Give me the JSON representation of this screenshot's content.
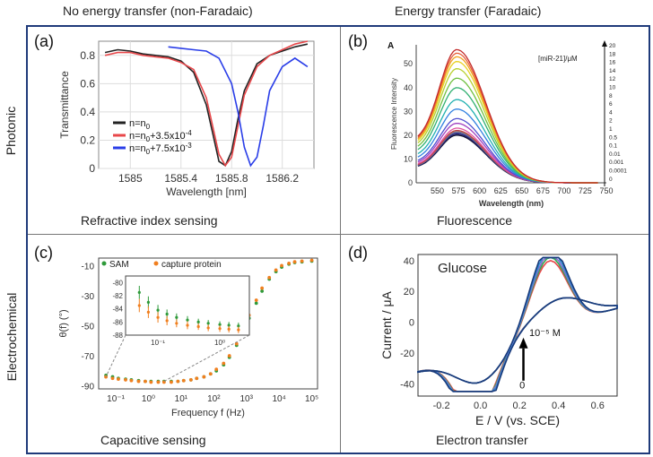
{
  "header": {
    "col_left": "No energy transfer (non-Faradaic)",
    "col_right": "Energy transfer (Faradaic)",
    "row_top": "Photonic",
    "row_bottom": "Electrochemical"
  },
  "panels": {
    "a": {
      "label": "(a)",
      "caption": "Refractive index sensing"
    },
    "b": {
      "label": "(b)",
      "caption": "Fluorescence"
    },
    "c": {
      "label": "(c)",
      "caption": "Capacitive sensing"
    },
    "d": {
      "label": "(d)",
      "caption": "Electron transfer"
    }
  },
  "colors": {
    "black": "#222222",
    "red": "#e8474a",
    "blue": "#2a3ee8",
    "green": "#2e9a3a",
    "orange": "#f07f1f",
    "border": "#1f3a7a"
  },
  "chart_data": [
    {
      "id": "a",
      "type": "line",
      "xlabel": "Wavelength [nm]",
      "ylabel": "Transmittance",
      "xlim": [
        1584.75,
        1586.45
      ],
      "ylim": [
        0,
        0.9
      ],
      "xticks": [
        1585,
        1585.4,
        1585.8,
        1586.2
      ],
      "xtick_labels": [
        "1585",
        "1585.4",
        "1585.8",
        "1586.2"
      ],
      "yticks": [
        0,
        0.2,
        0.4,
        0.6,
        0.8
      ],
      "ytick_labels": [
        "0",
        "0.2",
        "0.4",
        "0.6",
        "0.8"
      ],
      "legend": [
        {
          "text": "n=n",
          "sub": "0",
          "sup": ""
        },
        {
          "text": "n=n",
          "sub": "0",
          "tail": "+3.5x10",
          "sup": "-4"
        },
        {
          "text": "n=n",
          "sub": "0",
          "tail": "+7.5x10",
          "sup": "-3"
        }
      ],
      "series": [
        {
          "name": "n=n0",
          "color": "#222222",
          "x": [
            1584.8,
            1584.9,
            1585.0,
            1585.1,
            1585.2,
            1585.3,
            1585.4,
            1585.5,
            1585.6,
            1585.65,
            1585.7,
            1585.75,
            1585.8,
            1585.85,
            1585.9,
            1586.0,
            1586.1,
            1586.2,
            1586.3,
            1586.4
          ],
          "y": [
            0.82,
            0.84,
            0.83,
            0.81,
            0.8,
            0.79,
            0.76,
            0.68,
            0.45,
            0.25,
            0.05,
            0.02,
            0.12,
            0.35,
            0.55,
            0.74,
            0.8,
            0.83,
            0.86,
            0.88
          ]
        },
        {
          "name": "n=n0+3.5x10^-4",
          "color": "#e8474a",
          "x": [
            1584.8,
            1584.9,
            1585.0,
            1585.1,
            1585.2,
            1585.3,
            1585.4,
            1585.5,
            1585.6,
            1585.65,
            1585.7,
            1585.75,
            1585.8,
            1585.85,
            1585.9,
            1586.0,
            1586.1,
            1586.2,
            1586.3,
            1586.4
          ],
          "y": [
            0.8,
            0.82,
            0.82,
            0.8,
            0.79,
            0.78,
            0.75,
            0.7,
            0.5,
            0.3,
            0.1,
            0.02,
            0.08,
            0.3,
            0.52,
            0.72,
            0.8,
            0.84,
            0.88,
            0.9
          ]
        },
        {
          "name": "n=n0+7.5x10^-3",
          "color": "#2a3ee8",
          "x": [
            1585.3,
            1585.4,
            1585.5,
            1585.6,
            1585.7,
            1585.8,
            1585.85,
            1585.9,
            1585.95,
            1586.0,
            1586.05,
            1586.1,
            1586.2,
            1586.3,
            1586.4
          ],
          "y": [
            0.86,
            0.85,
            0.84,
            0.83,
            0.78,
            0.6,
            0.4,
            0.15,
            0.02,
            0.08,
            0.3,
            0.55,
            0.72,
            0.78,
            0.72
          ]
        }
      ]
    },
    {
      "id": "b",
      "type": "line",
      "header_letter": "A",
      "xlabel": "Wavelength (nm)",
      "ylabel": "Fluorescence Intensity",
      "xlim": [
        525,
        750
      ],
      "ylim": [
        0,
        58
      ],
      "xticks": [
        550,
        575,
        600,
        625,
        650,
        675,
        700,
        725,
        750
      ],
      "yticks": [
        0,
        10,
        20,
        30,
        40,
        50
      ],
      "legend_title": "[miR-21]/μM",
      "legend_levels": [
        "20",
        "18",
        "16",
        "14",
        "12",
        "10",
        "8",
        "6",
        "4",
        "2",
        "1",
        "0.5",
        "0.1",
        "0.01",
        "0.001",
        "0.0001",
        "0"
      ],
      "peak_wavelength": 573,
      "peaks": [
        56,
        54.5,
        53,
        51,
        48,
        44,
        40,
        35,
        31,
        27,
        25,
        23,
        22,
        21.5,
        21,
        20.5,
        20
      ],
      "start_fraction": 0.3,
      "colors": [
        "#c22a2a",
        "#e8603a",
        "#f0a020",
        "#e8d020",
        "#b8d030",
        "#70c040",
        "#30b070",
        "#20b0b0",
        "#3080e0",
        "#5050d0",
        "#a040c0",
        "#e050a0",
        "#c04040",
        "#808080",
        "#4040a0",
        "#202060",
        "#101030"
      ]
    },
    {
      "id": "c",
      "type": "scatter",
      "xlabel": "Frequency f (Hz)",
      "ylabel": "θ(f) (°)",
      "x_scale": "log",
      "xlim": [
        0.03,
        150000
      ],
      "ylim": [
        -92,
        -5
      ],
      "xtick_labels": [
        "10⁻¹",
        "10⁰",
        "10¹",
        "10²",
        "10³",
        "10⁴",
        "10⁵"
      ],
      "ytick_labels": [
        "-10",
        "-30",
        "-50",
        "-70",
        "-90"
      ],
      "yticks": [
        -10,
        -30,
        -50,
        -70,
        -90
      ],
      "legend": [
        "SAM",
        "capture protein"
      ],
      "series": [
        {
          "name": "SAM",
          "color": "#2e9a3a",
          "x": [
            0.05,
            0.08,
            0.12,
            0.2,
            0.3,
            0.5,
            0.8,
            1.2,
            2,
            3,
            5,
            8,
            12,
            20,
            30,
            50,
            80,
            120,
            200,
            300,
            500,
            800,
            1200,
            2000,
            3000,
            5000,
            8000,
            12000,
            20000,
            30000,
            50000,
            100000
          ],
          "y": [
            -83,
            -84,
            -85,
            -85.5,
            -86,
            -86.5,
            -87,
            -87,
            -87,
            -87,
            -87,
            -87,
            -86.5,
            -86,
            -85,
            -84,
            -82,
            -80,
            -76,
            -71,
            -63,
            -54,
            -45,
            -35,
            -27,
            -19,
            -14,
            -11,
            -9,
            -8,
            -7.5,
            -7
          ]
        },
        {
          "name": "capture protein",
          "color": "#f07f1f",
          "x": [
            0.05,
            0.08,
            0.12,
            0.2,
            0.3,
            0.5,
            0.8,
            1.2,
            2,
            3,
            5,
            8,
            12,
            20,
            30,
            50,
            80,
            120,
            200,
            300,
            500,
            800,
            1200,
            2000,
            3000,
            5000,
            8000,
            12000,
            20000,
            30000,
            50000,
            100000
          ],
          "y": [
            -84,
            -85,
            -85.5,
            -86,
            -86.5,
            -87,
            -87,
            -87.5,
            -87.5,
            -87.5,
            -87.5,
            -87,
            -86.5,
            -86,
            -85,
            -84,
            -82,
            -79,
            -75,
            -70,
            -62,
            -53,
            -43,
            -33,
            -25,
            -18,
            -13,
            -10,
            -8.5,
            -7.5,
            -7,
            -6.5
          ]
        }
      ],
      "inset": {
        "xlim": [
          0.03,
          3
        ],
        "ylim": [
          -88,
          -79
        ],
        "yticks": [
          -80,
          -82,
          -84,
          -86,
          -88
        ],
        "ytick_labels": [
          "-80",
          "-82",
          "-84",
          "-86",
          "-88"
        ],
        "xtick_labels": [
          "10⁻¹",
          "10⁰"
        ],
        "series": [
          {
            "name": "SAM",
            "color": "#2e9a3a",
            "x": [
              0.05,
              0.07,
              0.1,
              0.14,
              0.2,
              0.3,
              0.45,
              0.65,
              1.0,
              1.4,
              2.0
            ],
            "y": [
              -81.5,
              -83,
              -84.2,
              -84.8,
              -85.3,
              -85.7,
              -86,
              -86.2,
              -86.4,
              -86.5,
              -86.6
            ],
            "err": [
              1.0,
              0.9,
              0.8,
              0.7,
              0.6,
              0.6,
              0.5,
              0.5,
              0.5,
              0.5,
              0.5
            ]
          },
          {
            "name": "capture protein",
            "color": "#f07f1f",
            "x": [
              0.05,
              0.07,
              0.1,
              0.14,
              0.2,
              0.3,
              0.45,
              0.65,
              1.0,
              1.4,
              2.0
            ],
            "y": [
              -83.5,
              -84.5,
              -85.3,
              -85.8,
              -86.2,
              -86.5,
              -86.7,
              -86.9,
              -87,
              -87.1,
              -87.2
            ],
            "err": [
              1.0,
              0.9,
              0.8,
              0.7,
              0.6,
              0.6,
              0.5,
              0.5,
              0.5,
              0.5,
              0.5
            ]
          }
        ]
      }
    },
    {
      "id": "d",
      "type": "line",
      "title": "Glucose",
      "xlabel": "E / V (vs. SCE)",
      "ylabel": "Current / μA",
      "xlim": [
        -0.32,
        0.7
      ],
      "ylim": [
        -48,
        44
      ],
      "xticks": [
        -0.2,
        0.0,
        0.2,
        0.4,
        0.6
      ],
      "xtick_labels": [
        "-0.2",
        "0.0",
        "0.2",
        "0.4",
        "0.6"
      ],
      "yticks": [
        -40,
        -20,
        0,
        20,
        40
      ],
      "ytick_labels": [
        "-40",
        "-20",
        "0",
        "20",
        "40"
      ],
      "annotation_top": "10⁻⁵ M",
      "annotation_bottom": "0",
      "cv_curves": [
        {
          "color": "#e8474a",
          "scale": 0.82
        },
        {
          "color": "#30a850",
          "scale": 0.86
        },
        {
          "color": "#8a6ad0",
          "scale": 0.9
        },
        {
          "color": "#2a8ad0",
          "scale": 0.95
        },
        {
          "color": "#1a3a7a",
          "scale": 1.0
        }
      ]
    }
  ]
}
